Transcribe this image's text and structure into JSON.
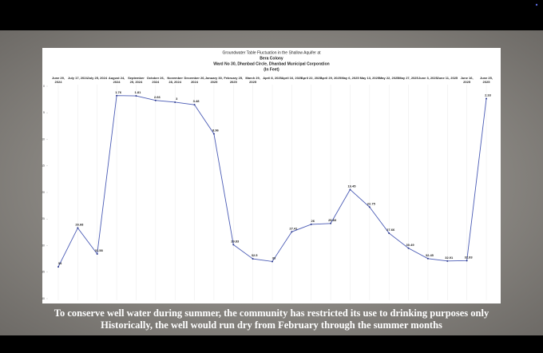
{
  "chart_data": {
    "type": "line",
    "title_lines": [
      "Groundwater Table Fluctuation in the Shallow Aquifer at",
      "Bera Colony",
      "Ward No 30, Dhanbad Circle, Dhanbad Municipal Corporation",
      "(In Feet)"
    ],
    "categories": [
      "June 29, 2024",
      "July 17, 2024",
      "July 25, 2024",
      "August 24, 2024",
      "September 25, 2024",
      "October 26, 2024",
      "November 28, 2024",
      "December 26, 2024",
      "January 30, 2025",
      "February 25, 2025",
      "March 29, 2025",
      "April 8, 2025",
      "April 16, 2025",
      "April 22, 2025",
      "April 29, 2025",
      "May 6, 2025",
      "May 13, 2025",
      "May 22, 2025",
      "May 27, 2025",
      "June 3, 2025",
      "June 11, 2025",
      "June 16, 2025",
      "June 25, 2025"
    ],
    "values": [
      34,
      26.68,
      31.58,
      1.76,
      1.81,
      2.66,
      3,
      3.48,
      8.96,
      29.83,
      32.5,
      33,
      27.41,
      26,
      25.83,
      19.45,
      22.75,
      27.66,
      30.49,
      32.45,
      32.91,
      32.83,
      2.33
    ],
    "color": "#4a5bb5",
    "ylim": [
      0,
      40
    ],
    "yticks": [
      0,
      5,
      10,
      15,
      20,
      25,
      30,
      35,
      40
    ],
    "inverted": true
  },
  "caption_lines": [
    "To conserve well water during summer, the community has restricted its use to drinking purposes only",
    "Historically, the well would run dry from February through the summer months"
  ]
}
